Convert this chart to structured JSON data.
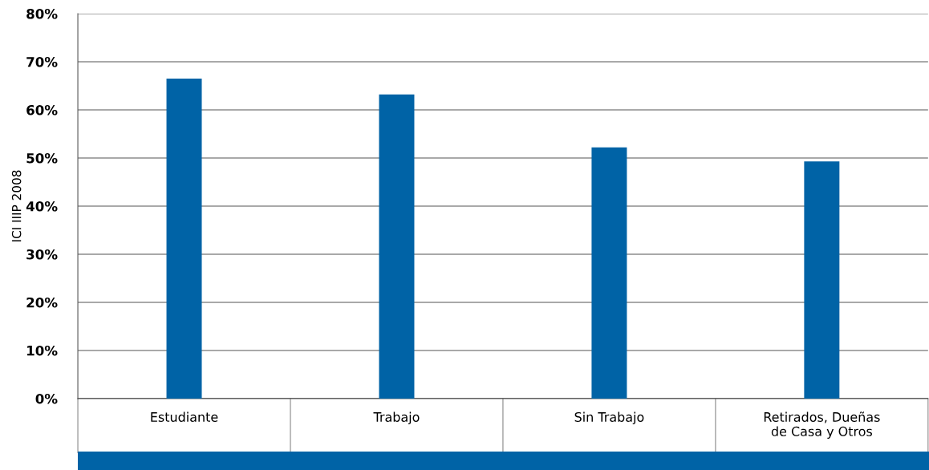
{
  "chart_data": {
    "type": "bar",
    "ylabel": "ICI IIIP 2008",
    "categories": [
      "Estudiante",
      "Trabajo",
      "Sin Trabajo",
      "Retirados, Dueñas\nde Casa y Otros"
    ],
    "values": [
      66.5,
      63.2,
      52.2,
      49.3
    ],
    "color": "#0063a6",
    "ylim": [
      0,
      80
    ],
    "yticks": [
      {
        "value": 0,
        "label": "0%"
      },
      {
        "value": 10,
        "label": "10%"
      },
      {
        "value": 20,
        "label": "20%"
      },
      {
        "value": 30,
        "label": "30%"
      },
      {
        "value": 40,
        "label": "40%"
      },
      {
        "value": 50,
        "label": "50%"
      },
      {
        "value": 60,
        "label": "60%"
      },
      {
        "value": 70,
        "label": "70%"
      },
      {
        "value": 80,
        "label": "80%"
      }
    ],
    "grid": "y",
    "legend": false
  }
}
